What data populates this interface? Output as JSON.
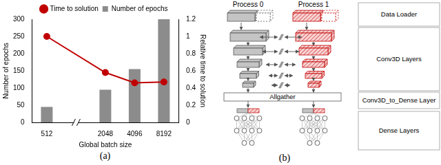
{
  "chart_data": {
    "type": "bar",
    "categories": [
      "512",
      null,
      "2048",
      "4096",
      "8192"
    ],
    "x_label": "Global batch size",
    "y_label": "Number of epochs",
    "y2_label": "Relative time to solution",
    "series": [
      {
        "name": "Number of epochs",
        "type": "bar",
        "color": "#8c8c8c",
        "values": [
          45,
          null,
          95,
          155,
          300
        ]
      },
      {
        "name": "Time to solution",
        "type": "line",
        "color": "#c00000",
        "marker": "circle",
        "axis": "y2",
        "values": [
          1.0,
          null,
          0.58,
          0.46,
          0.47
        ]
      }
    ],
    "ylim": [
      0,
      300
    ],
    "yticks": [
      0,
      50,
      100,
      150,
      200,
      250,
      300
    ],
    "y2lim": [
      0,
      1.2
    ],
    "y2ticks": [
      0,
      0.2,
      0.4,
      0.6,
      0.8,
      1,
      1.2
    ],
    "grid": false,
    "legend": "top"
  },
  "diagram": {
    "processes": [
      "Process 0",
      "Process 1"
    ],
    "stages": [
      "Data Loader",
      "Conv3D Layers",
      "Conv3D_to_Dense Layer",
      "Dense Layers"
    ],
    "gather": "Allgather"
  },
  "captions": [
    "(a)",
    "(b)"
  ]
}
